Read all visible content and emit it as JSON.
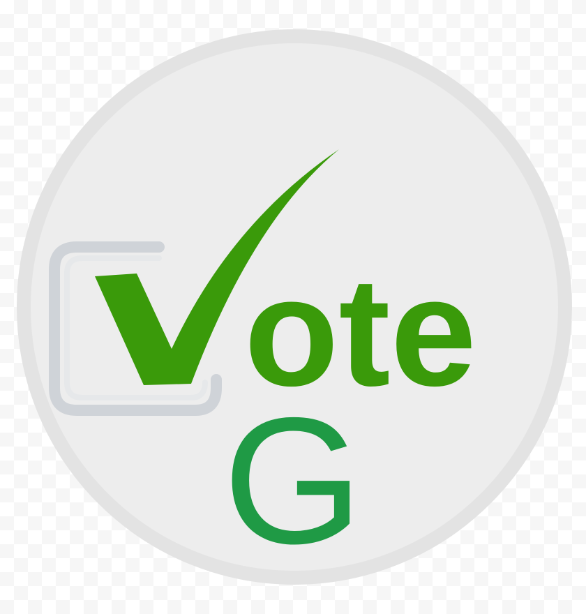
{
  "logo": {
    "word": "ote",
    "wordmark_alt": "Vote",
    "letter": "G",
    "icons": [
      "ballot-box-icon",
      "checkmark-icon"
    ]
  },
  "colors": {
    "background": "#ffffff",
    "badge_fill": "#ededed",
    "badge_ring": "#e3e3e3",
    "vote_green": "#3a9a0a",
    "letter_green": "#1f9a45",
    "box_gray": "#cfd3d8"
  }
}
